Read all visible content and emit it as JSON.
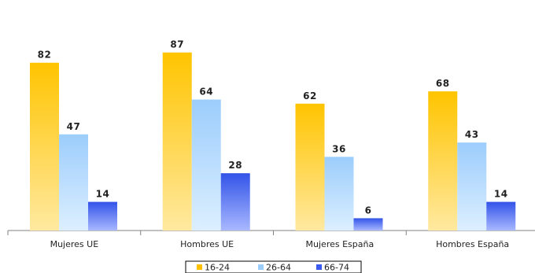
{
  "chart_data": {
    "type": "bar",
    "categories": [
      "Mujeres UE",
      "Hombres UE",
      "Mujeres España",
      "Hombres España"
    ],
    "series": [
      {
        "name": "16-24",
        "values": [
          82,
          87,
          62,
          68
        ],
        "color": "#ffc000"
      },
      {
        "name": "26-64",
        "values": [
          47,
          64,
          36,
          43
        ],
        "color": "#9ccdfc"
      },
      {
        "name": "66-74",
        "values": [
          14,
          28,
          6,
          14
        ],
        "color": "#3c5af0"
      }
    ],
    "ylim": [
      0,
      100
    ],
    "grid": false,
    "legend_position": "bottom"
  }
}
